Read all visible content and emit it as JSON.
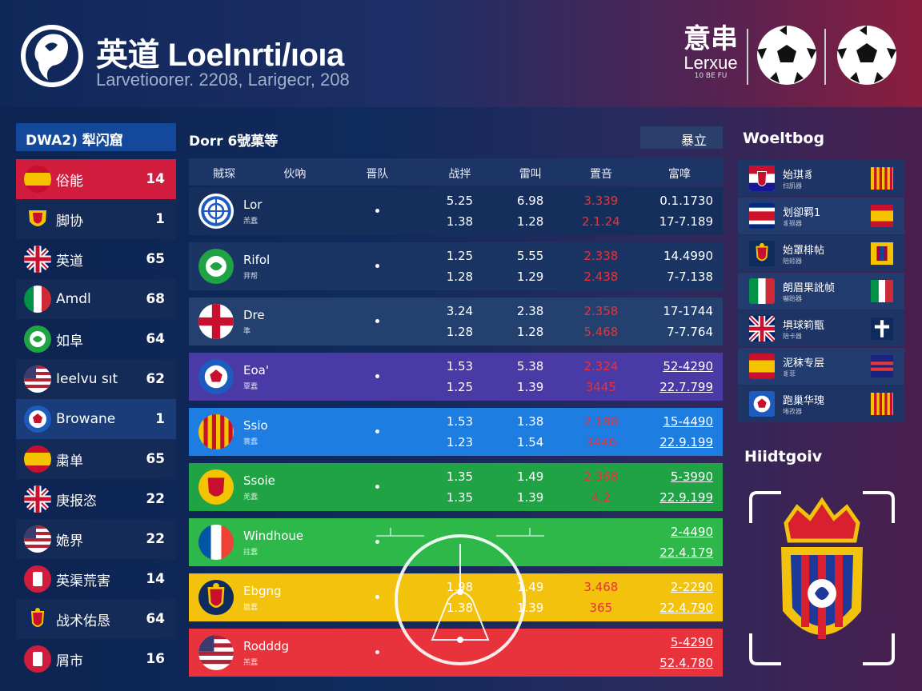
{
  "header": {
    "title": "英道 LoeInrti/ıoıa",
    "subtitle": "Larvetioorer. 2208, Larigecr, 208",
    "brand": {
      "cn": "意串",
      "en": "Lerxue",
      "small": "10 BE FU"
    }
  },
  "sidebar": {
    "title": "DWA2) 犁闪窟",
    "items": [
      {
        "label": "俗能",
        "count": "14",
        "state": "active",
        "flag": "spain"
      },
      {
        "label": "脚协",
        "count": "1",
        "state": "",
        "flag": "shield"
      },
      {
        "label": "英道",
        "count": "65",
        "state": "",
        "flag": "uk"
      },
      {
        "label": "Amdl",
        "count": "68",
        "state": "",
        "flag": "italy"
      },
      {
        "label": "如阜",
        "count": "64",
        "state": "",
        "flag": "green"
      },
      {
        "label": "Ieelvu sıt",
        "count": "62",
        "state": "",
        "flag": "usa"
      },
      {
        "label": "Browane",
        "count": "1",
        "state": "hl",
        "flag": "ball"
      },
      {
        "label": "粛单",
        "count": "65",
        "state": "",
        "flag": "spain"
      },
      {
        "label": "庚报恣",
        "count": "22",
        "state": "",
        "flag": "uk"
      },
      {
        "label": "姽界",
        "count": "22",
        "state": "",
        "flag": "usa"
      },
      {
        "label": "英渠荒害",
        "count": "14",
        "state": "",
        "flag": "red"
      },
      {
        "label": "战术佑恳",
        "count": "64",
        "state": "",
        "flag": "arms"
      },
      {
        "label": "屑市",
        "count": "16",
        "state": "",
        "flag": "red"
      }
    ]
  },
  "main": {
    "title": "Dorr 6號菓等",
    "filter_label": "暴立",
    "columns": [
      "賊琛",
      "伙吶",
      "晋队",
      "战拌",
      "雷叫",
      "置咅",
      "富嗱"
    ],
    "rows": [
      {
        "name": "Lor",
        "sub": "羔蠢",
        "bg": "#162e5c",
        "crest": "blue-ring",
        "c1": [
          "5.25",
          "1.38"
        ],
        "c2": [
          "6.98",
          "1.28"
        ],
        "c3": [
          "3.339",
          "2.1.24"
        ],
        "c4": [
          "0.1.1730",
          "17-7.189"
        ],
        "c3red": true,
        "ul": false
      },
      {
        "name": "Rifol",
        "sub": "荓帮",
        "bg": "#1a3564",
        "crest": "green",
        "c1": [
          "1.25",
          "1.28"
        ],
        "c2": [
          "5.55",
          "1.29"
        ],
        "c3": [
          "2.338",
          "2.438"
        ],
        "c4": [
          "14.4990",
          "7-7.138"
        ],
        "c3red": true,
        "ul": false
      },
      {
        "name": "Dre",
        "sub": "準",
        "bg": "#24406e",
        "crest": "red-white",
        "c1": [
          "3.24",
          "1.28"
        ],
        "c2": [
          "2.38",
          "1.28"
        ],
        "c3": [
          "2.358",
          "5.468"
        ],
        "c4": [
          "17-1744",
          "7-7.764"
        ],
        "c3red": true,
        "ul": false
      },
      {
        "name": "Eoa'",
        "sub": "覃蠢",
        "bg": "#4a3aa6",
        "crest": "ball",
        "c1": [
          "1.53",
          "1.25"
        ],
        "c2": [
          "5.38",
          "1.39"
        ],
        "c3": [
          "2.324",
          "3445"
        ],
        "c4": [
          "52-4290",
          "22.7.799"
        ],
        "c3red": true,
        "ul": true
      },
      {
        "name": "Ssio",
        "sub": "蓑蠢",
        "bg": "#1d7de0",
        "crest": "catalonia",
        "c1": [
          "1.53",
          "1.23"
        ],
        "c2": [
          "1.38",
          "1.54"
        ],
        "c3": [
          "2.188",
          "3446"
        ],
        "c4": [
          "15-4490",
          "22.9.199"
        ],
        "c3red": true,
        "ul": true
      },
      {
        "name": "Ssoie",
        "sub": "羌蠢",
        "bg": "#1fa344",
        "crest": "gold",
        "c1": [
          "1.35",
          "1.35"
        ],
        "c2": [
          "1.49",
          "1.39"
        ],
        "c3": [
          "2.368",
          "4.2"
        ],
        "c4": [
          "5-3990",
          "22.9.199"
        ],
        "c3red": true,
        "ul": true
      },
      {
        "name": "Windhoue",
        "sub": "拄蠢",
        "bg": "#2eb84a",
        "crest": "france",
        "c1": [
          "",
          ""
        ],
        "c2": [
          "",
          ""
        ],
        "c3": [
          "",
          ""
        ],
        "c4": [
          "2-4490",
          "22.4.179"
        ],
        "c3red": false,
        "ul": true
      },
      {
        "name": "Ebgng",
        "sub": "簄蠢",
        "bg": "#f2c20c",
        "crest": "arms",
        "c1": [
          "1.98",
          "1.38"
        ],
        "c2": [
          "1.49",
          "1.39"
        ],
        "c3": [
          "3.468",
          "365"
        ],
        "c4": [
          "2-2290",
          "22.4.790"
        ],
        "c3red": true,
        "ul": true
      },
      {
        "name": "Rodddg",
        "sub": "羔蠢",
        "bg": "#e8323c",
        "crest": "usa",
        "c1": [
          "",
          ""
        ],
        "c2": [
          "",
          ""
        ],
        "c3": [
          "",
          ""
        ],
        "c4": [
          "5-4290",
          "52.4.780"
        ],
        "c3red": false,
        "ul": true
      }
    ]
  },
  "right_panel": {
    "title": "Woeltbog",
    "items": [
      {
        "name": "始琪豸",
        "sub": "扫肌器",
        "flag": "croatia",
        "shield": "catalonia"
      },
      {
        "name": "划卻羁1",
        "sub": "豸殒器",
        "flag": "costa",
        "shield": "spain"
      },
      {
        "name": "始罩棑帖",
        "sub": "陪蚓器",
        "flag": "arms",
        "shield": "barca"
      },
      {
        "name": "朗眉果訛帧",
        "sub": "嚇跆器",
        "flag": "italy",
        "shield": "italy"
      },
      {
        "name": "埧球筣甑",
        "sub": "陪卡器",
        "flag": "uk",
        "shield": "cross"
      },
      {
        "name": "泥秣专层",
        "sub": "豸菲",
        "flag": "spain",
        "shield": "stripe"
      },
      {
        "name": "跑巢华瑰",
        "sub": "堵孜器",
        "flag": "ball",
        "shield": "catalonia"
      }
    ],
    "highlight_title": "Hiidtgoiv"
  },
  "colors": {
    "accent": "#d21c3e",
    "primary": "#13489a",
    "panel": "#1d3464"
  }
}
